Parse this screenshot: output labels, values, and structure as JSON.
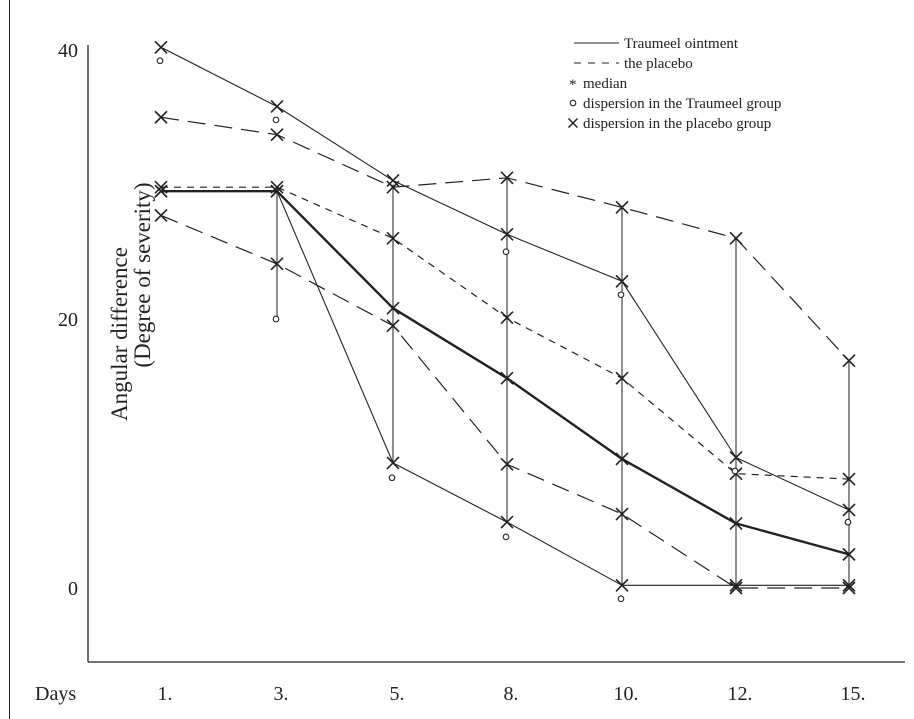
{
  "chart_data": {
    "type": "line",
    "xlabel": "Days",
    "ylabel": [
      "Angular difference",
      "(Degree of severity)"
    ],
    "categories": [
      "1.",
      "3.",
      "5.",
      "8.",
      "10.",
      "12.",
      "15."
    ],
    "ylim": [
      -5.5,
      42
    ],
    "yticks": [
      "0",
      "20",
      "40"
    ],
    "grid": false,
    "legend_position": "top-right",
    "legend": [
      {
        "label": "Traumeel ointment",
        "symbol": "solid-line"
      },
      {
        "label": "the placebo",
        "symbol": "dashed-line"
      },
      {
        "label": "median",
        "symbol": "star"
      },
      {
        "label": "dispersion in the Traumeel group",
        "symbol": "circle"
      },
      {
        "label": "dispersion in the placebo group",
        "symbol": "x"
      }
    ],
    "series": [
      {
        "role": "traumeel-upper",
        "line": "thin-solid",
        "values": [
          40.2,
          35.8,
          30.3,
          26.3,
          22.8,
          9.7,
          5.8
        ]
      },
      {
        "role": "traumeel-median",
        "line": "thick-solid",
        "values": [
          29.5,
          29.5,
          20.8,
          15.6,
          9.6,
          4.8,
          2.5
        ]
      },
      {
        "role": "traumeel-lower",
        "line": "thin-solid",
        "values": [
          29.5,
          29.5,
          9.3,
          4.9,
          0.2,
          0.2,
          0.2
        ]
      },
      {
        "role": "placebo-upper",
        "line": "long-dash",
        "values": [
          35.0,
          33.7,
          29.8,
          30.5,
          28.3,
          26.0,
          16.9
        ]
      },
      {
        "role": "placebo-median",
        "line": "short-dash",
        "values": [
          29.8,
          29.8,
          26.0,
          20.1,
          15.6,
          8.5,
          8.1
        ]
      },
      {
        "role": "placebo-lower",
        "line": "long-dash",
        "values": [
          27.7,
          24.1,
          19.5,
          9.2,
          5.5,
          0,
          0
        ]
      }
    ],
    "traumeel_dispersion_points": [
      {
        "x": "1.",
        "y": 39.2
      },
      {
        "x": "3.",
        "y": 34.8
      },
      {
        "x": "3.",
        "y": 20.0
      },
      {
        "x": "5.",
        "y": 8.2
      },
      {
        "x": "8.",
        "y": 25.0
      },
      {
        "x": "8.",
        "y": 3.8
      },
      {
        "x": "10.",
        "y": 21.8
      },
      {
        "x": "10.",
        "y": -0.8
      },
      {
        "x": "12.",
        "y": 8.7
      },
      {
        "x": "15.",
        "y": 4.9
      }
    ],
    "vertical_ranges": [
      {
        "x": "3.",
        "y1": 20.0,
        "y2": 29.8
      },
      {
        "x": "5.",
        "y1": 9.3,
        "y2": 30.0
      },
      {
        "x": "8.",
        "y1": 4.9,
        "y2": 30.5
      },
      {
        "x": "10.",
        "y1": 0.2,
        "y2": 28.3
      },
      {
        "x": "12.",
        "y1": 0.2,
        "y2": 26.0
      },
      {
        "x": "15.",
        "y1": 0.2,
        "y2": 16.9
      }
    ]
  }
}
